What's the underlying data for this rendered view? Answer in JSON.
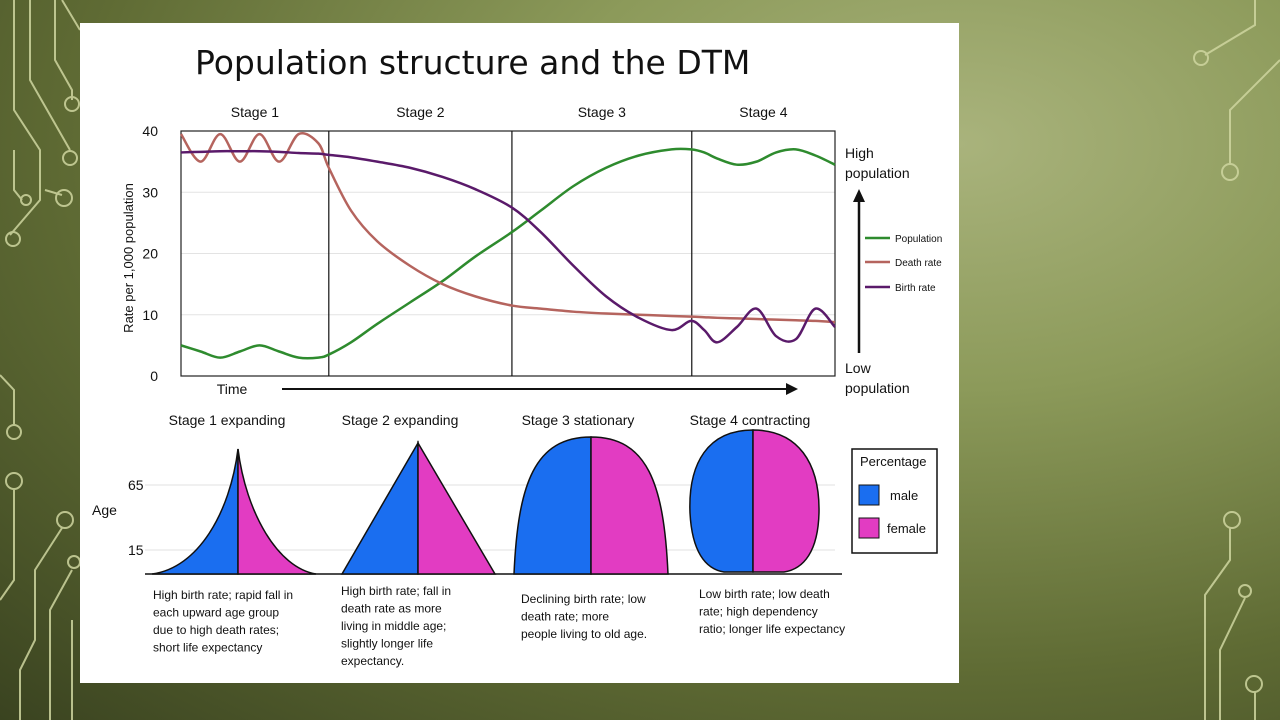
{
  "slide": {
    "title": "Population structure and the DTM"
  },
  "chart_data": [
    {
      "type": "line",
      "title": "Population structure and the DTM",
      "xlabel": "Time",
      "ylabel": "Rate per 1,000 population",
      "ylim": [
        0,
        40
      ],
      "yticks": [
        0,
        10,
        20,
        30,
        40
      ],
      "stages": [
        "Stage 1",
        "Stage 2",
        "Stage 3",
        "Stage 4"
      ],
      "stage_bounds": [
        0,
        22.6,
        50.6,
        78.1,
        100
      ],
      "x": [
        0,
        3,
        6,
        9,
        12,
        15,
        18,
        21,
        22.6,
        26,
        30,
        35,
        40,
        45,
        50.6,
        55,
        60,
        65,
        70,
        75,
        78,
        80,
        82,
        85,
        88,
        91,
        94,
        97,
        100
      ],
      "series": [
        {
          "name": "Population",
          "color": "#2e8b2e",
          "values": [
            5,
            4,
            3,
            4,
            5,
            4,
            3,
            3,
            3.5,
            5.5,
            8.5,
            12,
            15.5,
            19.5,
            23.5,
            27,
            31,
            34,
            36,
            37,
            37,
            36.5,
            35.5,
            34.5,
            35,
            36.5,
            37,
            36,
            34.5
          ]
        },
        {
          "name": "Death rate",
          "color": "#b5645e",
          "values": [
            39.5,
            35,
            39.5,
            35,
            39.5,
            35,
            39.5,
            38,
            34,
            27,
            22,
            18,
            15,
            13,
            11.5,
            11,
            10.5,
            10.2,
            10,
            9.8,
            9.7,
            9.6,
            9.5,
            9.4,
            9.3,
            9.2,
            9.1,
            9,
            8.8
          ]
        },
        {
          "name": "Birth rate",
          "color": "#5a1a6a",
          "values": [
            36.5,
            36.6,
            36.7,
            36.7,
            36.7,
            36.6,
            36.4,
            36.3,
            36.1,
            35.7,
            35,
            34,
            32.5,
            30.5,
            27.5,
            23.5,
            18,
            13,
            9.5,
            7.5,
            9,
            7.5,
            5.5,
            8,
            11,
            6.5,
            6,
            11,
            8
          ]
        }
      ],
      "legend": [
        "Population",
        "Death rate",
        "Birth rate"
      ],
      "legend_position": "right",
      "side_labels": {
        "high_1": "High",
        "high_2": "population",
        "low_1": "Low",
        "low_2": "population"
      }
    },
    {
      "type": "population-pyramids",
      "ylabel": "Age",
      "yticks": [
        "65",
        "15"
      ],
      "legend_title": "Percentage",
      "legend": [
        {
          "name": "male",
          "color": "#1a6ef0"
        },
        {
          "name": "female",
          "color": "#e23cc2"
        }
      ],
      "pyramids": [
        {
          "title": "Stage 1 expanding",
          "desc": [
            "High birth rate; rapid fall in",
            "each upward age group",
            "due to high death rates;",
            "short life expectancy"
          ]
        },
        {
          "title": "Stage 2 expanding",
          "desc": [
            "High birth rate; fall in",
            "death rate as more",
            "living in middle age;",
            "slightly longer life",
            "expectancy."
          ]
        },
        {
          "title": "Stage 3 stationary",
          "desc": [
            "Declining birth rate; low",
            "death rate; more",
            "people living to old age."
          ]
        },
        {
          "title": "Stage 4 contracting",
          "desc": [
            "Low birth rate; low death",
            "rate; high dependency",
            "ratio; longer life expectancy"
          ]
        }
      ]
    }
  ]
}
